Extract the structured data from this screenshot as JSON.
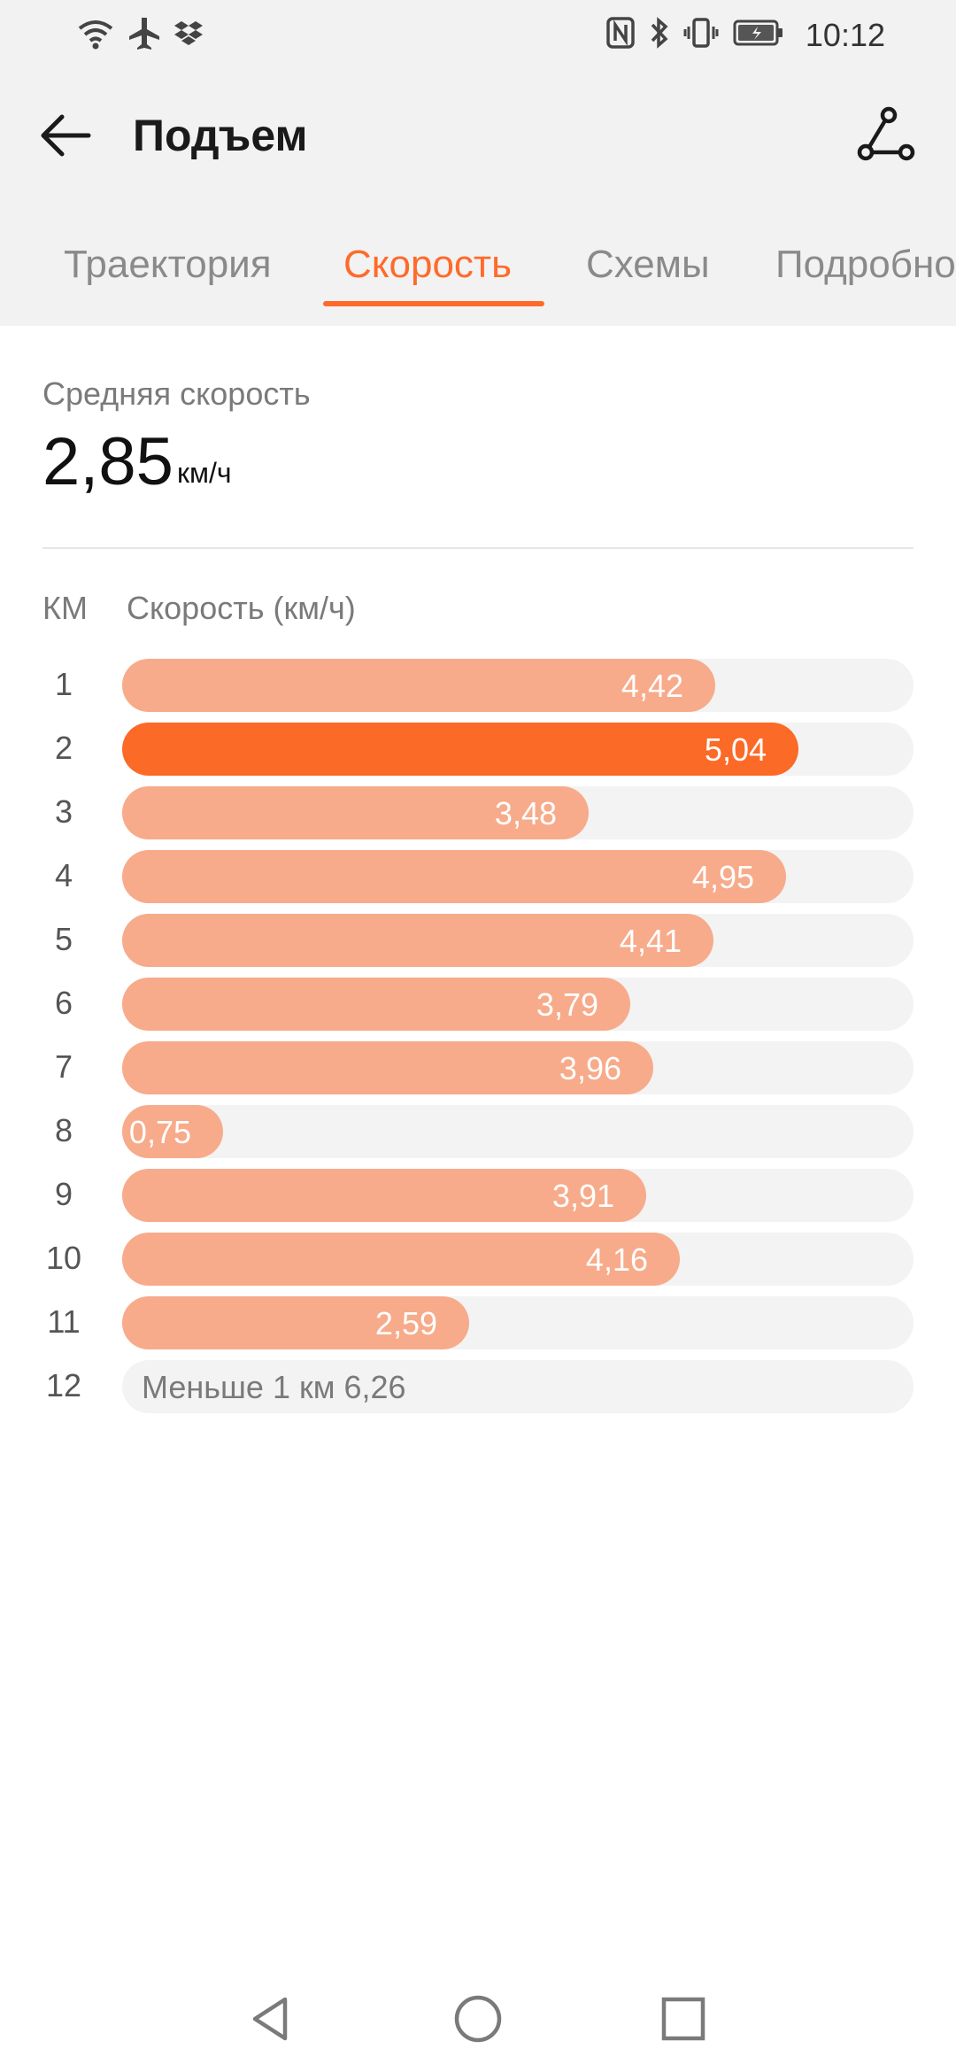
{
  "status_bar": {
    "time": "10:12",
    "left_icons": [
      "wifi-icon",
      "airplane-icon",
      "dropbox-icon"
    ],
    "right_icons": [
      "nfc-icon",
      "bluetooth-icon",
      "vibrate-icon",
      "battery-icon"
    ]
  },
  "header": {
    "title": "Подъем",
    "back_icon": "arrow-left-icon",
    "route_icon": "route-icon"
  },
  "tabs": [
    {
      "label": "Траектория",
      "active": false
    },
    {
      "label": "Скорость",
      "active": true
    },
    {
      "label": "Схемы",
      "active": false
    },
    {
      "label": "Подробно",
      "active": false
    }
  ],
  "summary": {
    "avg_label": "Средняя скорость",
    "avg_value": "2,85",
    "avg_unit": "км/ч"
  },
  "table": {
    "col_km": "КМ",
    "col_speed": "Скорость (км/ч)"
  },
  "chart_data": {
    "type": "bar",
    "orientation": "horizontal",
    "categories": [
      "1",
      "2",
      "3",
      "4",
      "5",
      "6",
      "7",
      "8",
      "9",
      "10",
      "11"
    ],
    "values": [
      4.42,
      5.04,
      3.48,
      4.95,
      4.41,
      3.79,
      3.96,
      0.75,
      3.91,
      4.16,
      2.59
    ],
    "value_labels": [
      "4,42",
      "5,04",
      "3,48",
      "4,95",
      "4,41",
      "3,79",
      "3,96",
      "0,75",
      "3,91",
      "4,16",
      "2,59"
    ],
    "highlight_index": 1,
    "xlabel": "Скорость (км/ч)",
    "ylabel": "КМ",
    "xlim": [
      0,
      5.9
    ],
    "remainder": {
      "category": "12",
      "label": "Меньше 1 км 6,26"
    }
  },
  "colors": {
    "accent": "#ff6a2b",
    "bar": "#f7ab8a",
    "bar_highlight": "#fc6a27",
    "track": "#f3f3f3"
  },
  "navbar": {
    "icons": [
      "nav-back-icon",
      "nav-home-icon",
      "nav-recents-icon"
    ]
  }
}
